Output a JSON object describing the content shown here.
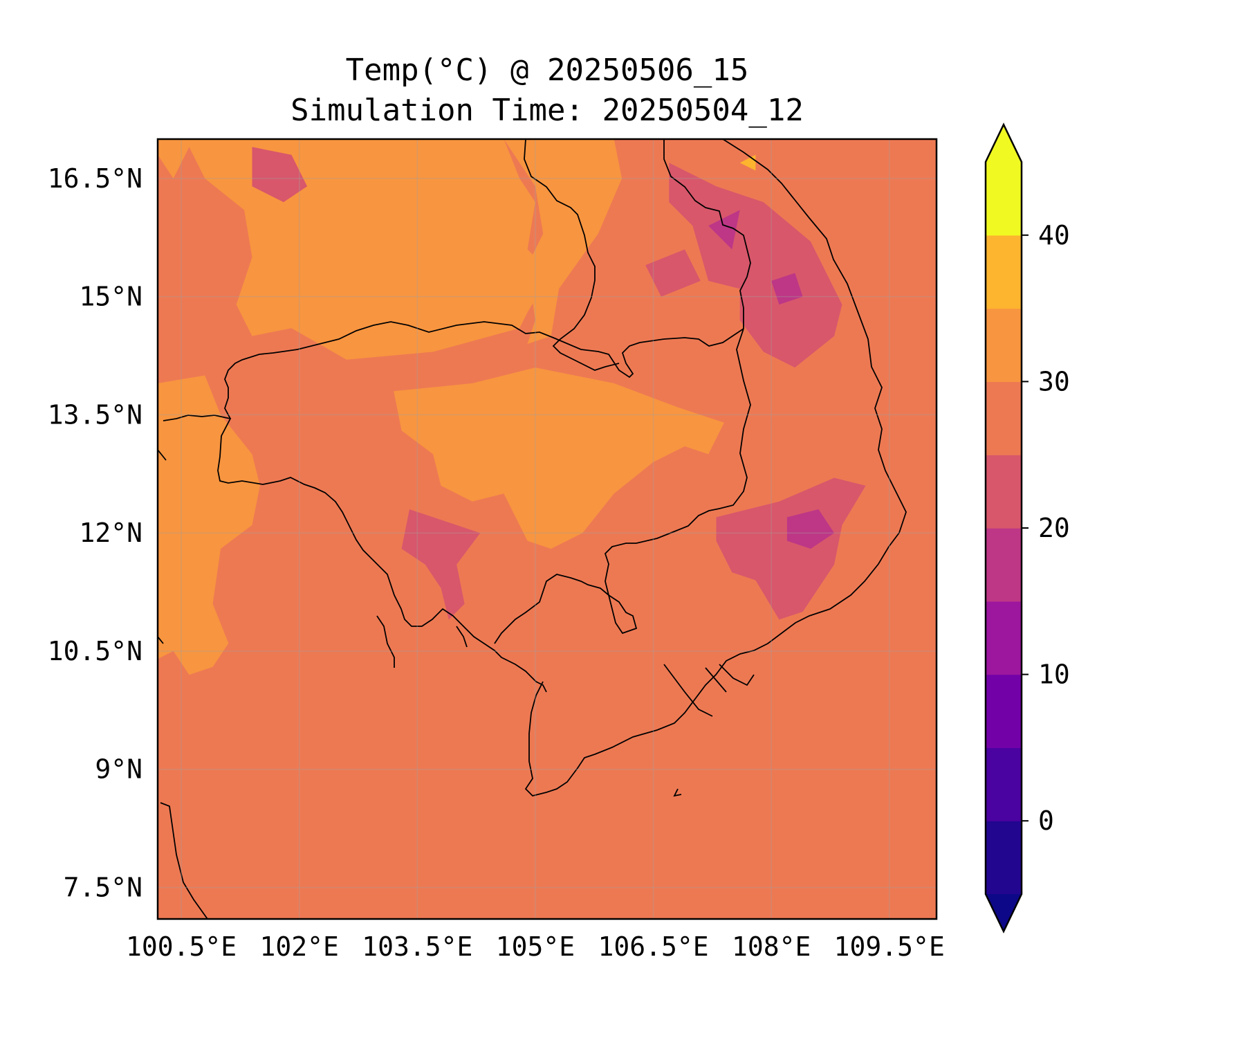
{
  "chart_data": {
    "type": "heatmap",
    "title": "Temp(°C) @ 20250506_15",
    "subtitle": "Simulation Time: 20250504_12",
    "xlabel": "",
    "ylabel": "",
    "xlim": [
      100.2,
      110.1
    ],
    "ylim": [
      7.1,
      17.0
    ],
    "x_ticks": [
      {
        "value": 100.5,
        "label": "100.5°E"
      },
      {
        "value": 102.0,
        "label": "102°E"
      },
      {
        "value": 103.5,
        "label": "103.5°E"
      },
      {
        "value": 105.0,
        "label": "105°E"
      },
      {
        "value": 106.5,
        "label": "106.5°E"
      },
      {
        "value": 108.0,
        "label": "108°E"
      },
      {
        "value": 109.5,
        "label": "109.5°E"
      }
    ],
    "y_ticks": [
      {
        "value": 16.5,
        "label": "16.5°N"
      },
      {
        "value": 15.0,
        "label": "15°N"
      },
      {
        "value": 13.5,
        "label": "13.5°N"
      },
      {
        "value": 12.0,
        "label": "12°N"
      },
      {
        "value": 10.5,
        "label": "10.5°N"
      },
      {
        "value": 9.0,
        "label": "9°N"
      },
      {
        "value": 7.5,
        "label": "7.5°N"
      }
    ],
    "grid": true,
    "colorbar": {
      "levels": [
        -5,
        0,
        5,
        10,
        15,
        20,
        25,
        30,
        35,
        40,
        45
      ],
      "colors": [
        "#220690",
        "#4a02a0",
        "#7201a8",
        "#9c179e",
        "#bd3786",
        "#d8576b",
        "#ed7953",
        "#f89540",
        "#fdb42f",
        "#f0f921"
      ],
      "under_color": "#0d0887",
      "over_color": "#f0f921",
      "tick_values": [
        0,
        10,
        20,
        30,
        40
      ],
      "tick_labels": [
        "0",
        "10",
        "20",
        "30",
        "40"
      ]
    },
    "background_temperature": 27.5,
    "regions": [
      {
        "temp": 32.5,
        "points": [
          [
            100.2,
            17.0
          ],
          [
            104.6,
            17.0
          ],
          [
            104.8,
            16.5
          ],
          [
            105.0,
            16.2
          ],
          [
            104.9,
            15.6
          ],
          [
            105.2,
            15.3
          ],
          [
            104.9,
            14.8
          ],
          [
            104.8,
            14.6
          ],
          [
            103.7,
            14.3
          ],
          [
            102.6,
            14.2
          ],
          [
            101.9,
            14.6
          ],
          [
            101.4,
            14.5
          ],
          [
            101.2,
            14.9
          ],
          [
            101.4,
            15.5
          ],
          [
            101.3,
            16.1
          ],
          [
            100.8,
            16.5
          ],
          [
            100.6,
            16.9
          ],
          [
            100.4,
            16.5
          ],
          [
            100.2,
            16.8
          ]
        ]
      },
      {
        "temp": 32.5,
        "points": [
          [
            104.6,
            17.0
          ],
          [
            106.0,
            17.0
          ],
          [
            106.1,
            16.5
          ],
          [
            105.8,
            15.8
          ],
          [
            105.3,
            15.1
          ],
          [
            105.2,
            14.5
          ],
          [
            104.9,
            14.4
          ],
          [
            105.0,
            14.7
          ],
          [
            104.9,
            15.4
          ],
          [
            105.1,
            15.8
          ],
          [
            105.0,
            16.4
          ]
        ]
      },
      {
        "temp": 32.5,
        "points": [
          [
            100.2,
            13.9
          ],
          [
            100.8,
            14.0
          ],
          [
            101.0,
            13.5
          ],
          [
            101.4,
            13.0
          ],
          [
            101.5,
            12.6
          ],
          [
            101.4,
            12.1
          ],
          [
            101.0,
            11.8
          ],
          [
            100.9,
            11.1
          ],
          [
            101.1,
            10.6
          ],
          [
            100.9,
            10.3
          ],
          [
            100.6,
            10.2
          ],
          [
            100.4,
            10.5
          ],
          [
            100.2,
            10.4
          ]
        ]
      },
      {
        "temp": 32.5,
        "points": [
          [
            103.2,
            13.8
          ],
          [
            104.2,
            13.9
          ],
          [
            105.0,
            14.1
          ],
          [
            106.0,
            13.9
          ],
          [
            106.8,
            13.6
          ],
          [
            107.4,
            13.4
          ],
          [
            107.2,
            13.0
          ],
          [
            106.9,
            13.1
          ],
          [
            106.5,
            12.9
          ],
          [
            106.0,
            12.5
          ],
          [
            105.6,
            12.0
          ],
          [
            105.2,
            11.8
          ],
          [
            104.9,
            11.9
          ],
          [
            104.6,
            12.5
          ],
          [
            104.2,
            12.4
          ],
          [
            103.8,
            12.6
          ],
          [
            103.7,
            13.0
          ],
          [
            103.3,
            13.3
          ]
        ]
      },
      {
        "temp": 22.5,
        "points": [
          [
            103.4,
            12.3
          ],
          [
            103.7,
            12.2
          ],
          [
            104.3,
            12.0
          ],
          [
            104.0,
            11.6
          ],
          [
            104.1,
            11.1
          ],
          [
            103.9,
            10.9
          ],
          [
            103.8,
            11.3
          ],
          [
            103.6,
            11.6
          ],
          [
            103.3,
            11.8
          ]
        ]
      },
      {
        "temp": 22.5,
        "points": [
          [
            106.7,
            16.7
          ],
          [
            107.3,
            16.4
          ],
          [
            107.9,
            16.2
          ],
          [
            108.5,
            15.7
          ],
          [
            108.9,
            14.9
          ],
          [
            108.8,
            14.5
          ],
          [
            108.3,
            14.1
          ],
          [
            107.9,
            14.3
          ],
          [
            107.6,
            14.7
          ],
          [
            107.6,
            15.1
          ],
          [
            107.2,
            15.2
          ],
          [
            107.0,
            15.9
          ],
          [
            106.7,
            16.2
          ]
        ]
      },
      {
        "temp": 22.5,
        "points": [
          [
            106.4,
            15.4
          ],
          [
            106.9,
            15.6
          ],
          [
            107.1,
            15.2
          ],
          [
            106.6,
            15.0
          ]
        ]
      },
      {
        "temp": 22.5,
        "points": [
          [
            107.3,
            12.2
          ],
          [
            108.1,
            12.4
          ],
          [
            108.8,
            12.7
          ],
          [
            109.2,
            12.6
          ],
          [
            108.9,
            12.1
          ],
          [
            108.8,
            11.6
          ],
          [
            108.4,
            11.0
          ],
          [
            108.1,
            10.9
          ],
          [
            107.8,
            11.4
          ],
          [
            107.5,
            11.5
          ],
          [
            107.3,
            11.9
          ]
        ]
      },
      {
        "temp": 22.5,
        "points": [
          [
            101.4,
            16.9
          ],
          [
            101.9,
            16.8
          ],
          [
            102.1,
            16.4
          ],
          [
            101.8,
            16.2
          ],
          [
            101.4,
            16.4
          ]
        ]
      },
      {
        "temp": 17.5,
        "points": [
          [
            108.2,
            12.2
          ],
          [
            108.6,
            12.3
          ],
          [
            108.8,
            12.0
          ],
          [
            108.5,
            11.8
          ],
          [
            108.2,
            11.9
          ]
        ]
      },
      {
        "temp": 17.5,
        "points": [
          [
            107.2,
            15.9
          ],
          [
            107.6,
            16.1
          ],
          [
            107.5,
            15.6
          ]
        ]
      },
      {
        "temp": 17.5,
        "points": [
          [
            108.0,
            15.2
          ],
          [
            108.3,
            15.3
          ],
          [
            108.4,
            15.0
          ],
          [
            108.1,
            14.9
          ]
        ]
      },
      {
        "temp": 37.5,
        "points": [
          [
            107.6,
            16.7
          ],
          [
            107.8,
            16.8
          ],
          [
            107.8,
            16.6
          ]
        ]
      }
    ]
  }
}
